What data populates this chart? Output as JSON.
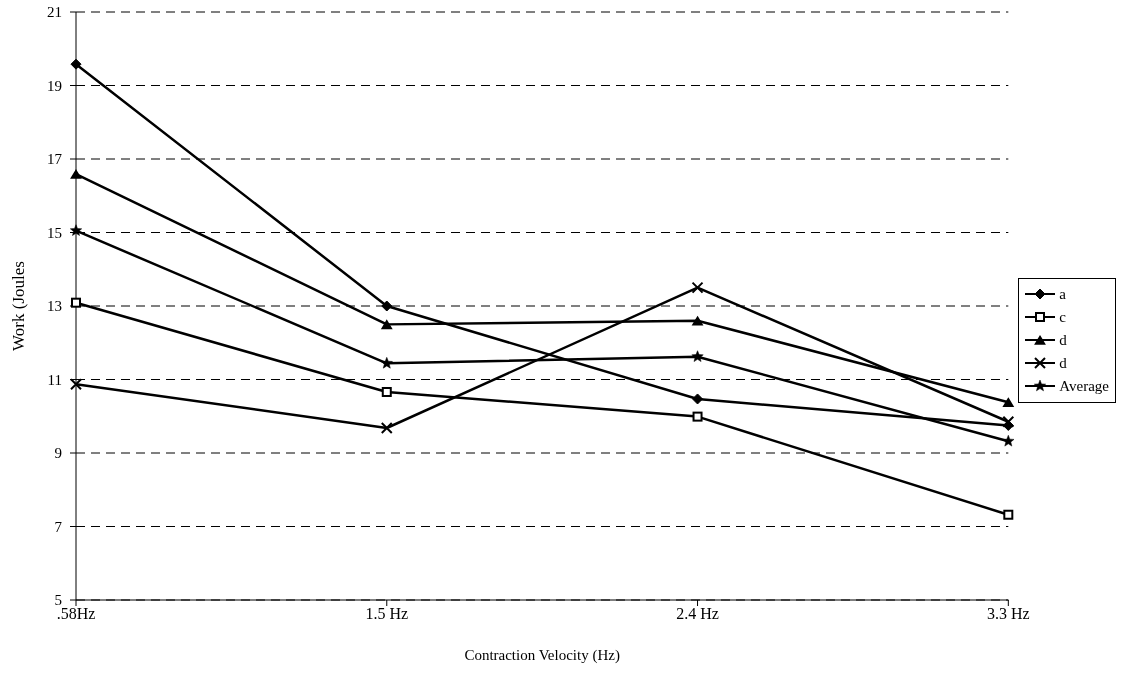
{
  "chart_data": {
    "type": "line",
    "xlabel": "Contraction Velocity (Hz)",
    "ylabel": "Work (Joules",
    "categories": [
      ".58Hz",
      "1.5 Hz",
      "2.4 Hz",
      "3.3 Hz"
    ],
    "series": [
      {
        "name": "a",
        "color": "#000000",
        "marker": "diamond",
        "values": [
          19.58,
          13.0,
          10.47,
          9.75
        ]
      },
      {
        "name": "c",
        "color": "#000000",
        "marker": "square",
        "values": [
          13.09,
          10.66,
          9.99,
          7.32
        ]
      },
      {
        "name": "d",
        "color": "#000000",
        "marker": "triangle",
        "values": [
          16.59,
          12.5,
          12.6,
          10.38
        ]
      },
      {
        "name": "d",
        "color": "#000000",
        "marker": "cross",
        "values": [
          10.87,
          9.68,
          13.5,
          9.85
        ]
      },
      {
        "name": "Average",
        "color": "#000000",
        "marker": "star",
        "values": [
          15.05,
          11.44,
          11.62,
          9.32
        ]
      }
    ],
    "ylim": [
      5,
      21
    ],
    "yticks": [
      5,
      7,
      9,
      11,
      13,
      15,
      17,
      19,
      21
    ],
    "grid": "y",
    "legend": "right",
    "line_style": "solid"
  }
}
